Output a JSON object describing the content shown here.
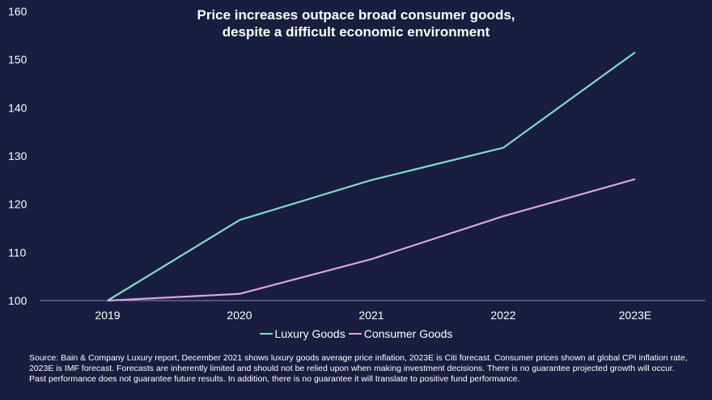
{
  "chart_data": {
    "type": "line",
    "title_line1": "Price increases outpace broad consumer goods,",
    "title_line2": "despite a difficult economic environment",
    "categories": [
      "2019",
      "2020",
      "2021",
      "2022",
      "2023E"
    ],
    "series": [
      {
        "name": "Luxury Goods",
        "color": "#7fdcc8",
        "values": [
          100,
          116.7,
          125,
          131.7,
          151.5
        ]
      },
      {
        "name": "Consumer Goods",
        "color": "#d9a6e0",
        "values": [
          100,
          101.4,
          108.6,
          117.5,
          125.2
        ]
      }
    ],
    "y_ticks": [
      100,
      110,
      120,
      130,
      140,
      150,
      160
    ],
    "ylim": [
      100,
      160
    ],
    "grid": false,
    "legend_position": "bottom"
  },
  "footnote": "Source: Bain & Company Luxury report, December 2021 shows luxury goods average price inflation, 2023E is Citi forecast. Consumer prices shown at global CPI inflation rate, 2023E is IMF forecast. Forecasts are inherently limited and should not be relied upon when making investment decisions. There is no guarantee projected growth will occur. Past performance does not guarantee future results. In addition, there is no guarantee it will translate to positive fund performance."
}
